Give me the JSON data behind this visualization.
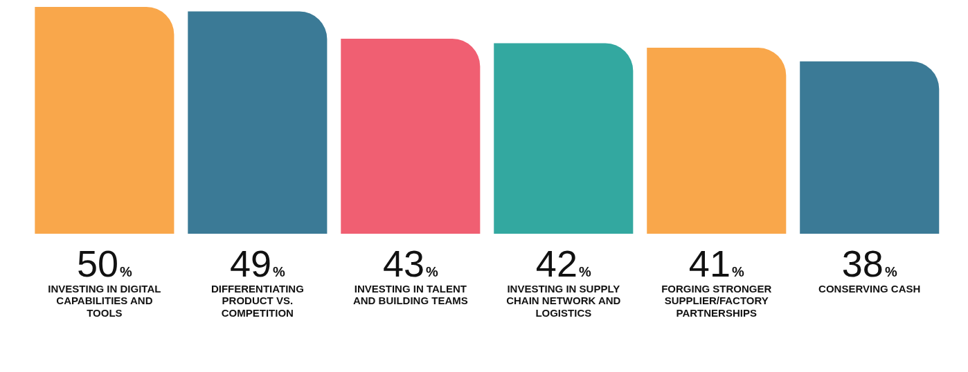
{
  "chart_data": {
    "type": "bar",
    "categories": [
      "INVESTING IN DIGITAL CAPABILITIES AND TOOLS",
      "DIFFERENTIATING PRODUCT VS. COMPETITION",
      "INVESTING IN TALENT AND BUILDING TEAMS",
      "INVESTING IN SUPPLY CHAIN NETWORK AND LOGISTICS",
      "FORGING STRONGER SUPPLIER/FACTORY PARTNERSHIPS",
      "CONSERVING CASH"
    ],
    "values": [
      50,
      49,
      43,
      42,
      41,
      38
    ],
    "colors": [
      "#f9a74b",
      "#3b7a96",
      "#f05f72",
      "#33a8a0",
      "#f9a74b",
      "#3b7a96"
    ],
    "value_labels": [
      "50%",
      "49%",
      "43%",
      "42%",
      "41%",
      "38%"
    ],
    "grid": false,
    "legend": false
  }
}
